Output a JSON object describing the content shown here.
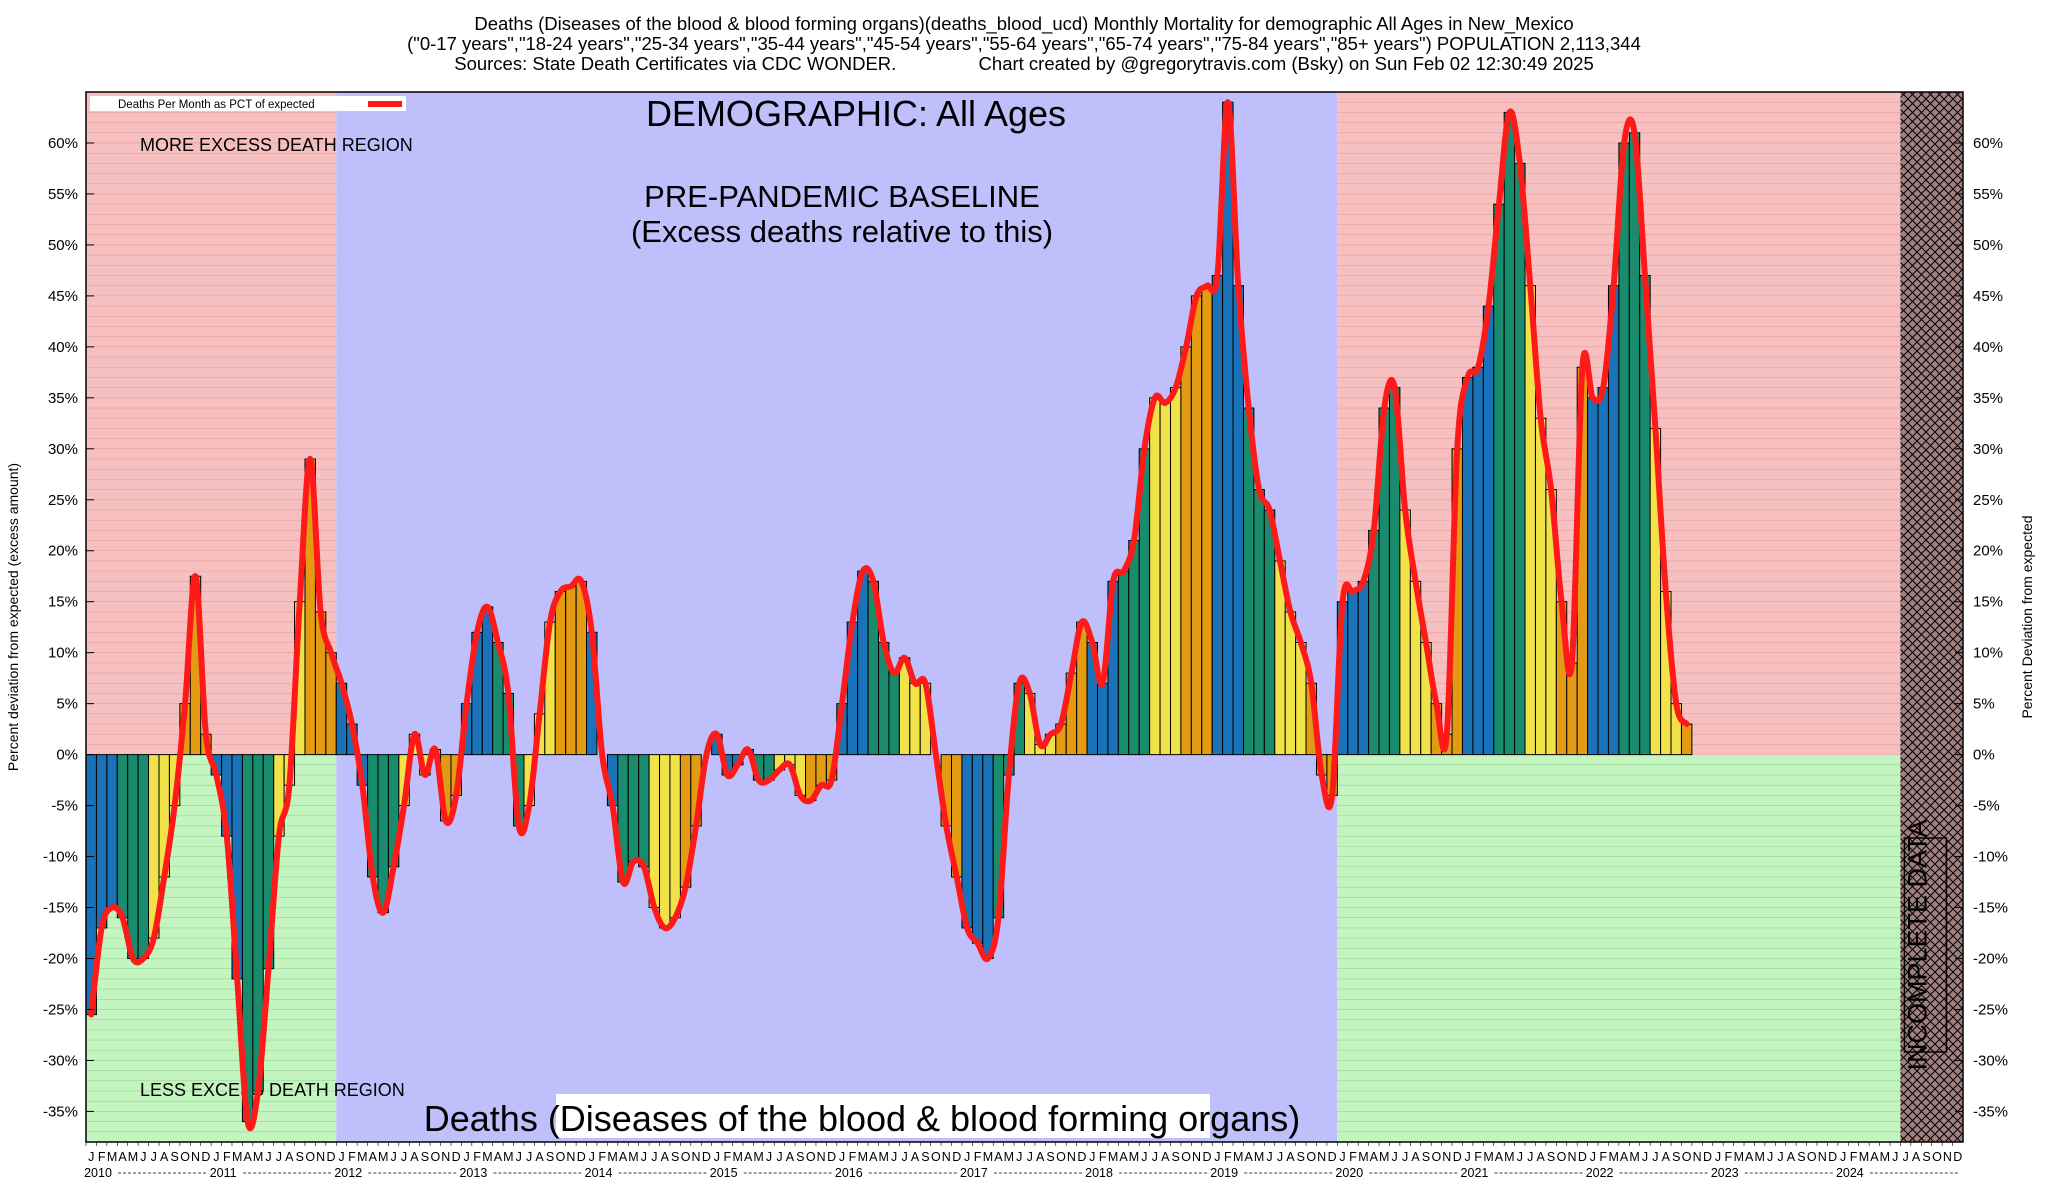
{
  "header": {
    "line1": "Deaths (Diseases of the blood & blood forming organs)(deaths_blood_ucd) Monthly Mortality for demographic All Ages in New_Mexico",
    "line2": "(\"0-17 years\",\"18-24 years\",\"25-34 years\",\"35-44 years\",\"45-54 years\",\"55-64 years\",\"65-74 years\",\"75-84 years\",\"85+ years\") POPULATION 2,113,344",
    "line3": "Sources: State Death Certificates via CDC WONDER.                Chart created by @gregorytravis.com (Bsky) on Sun Feb 02 12:30:49 2025"
  },
  "colors": {
    "excess_region": "#f7c0c0",
    "less_region": "#c4f5c0",
    "baseline_region": "#bfbffc",
    "incomplete_region": "#a08080",
    "line": "#ff1a1a",
    "bar_palette": [
      "#1a72b8",
      "#1a8c6e",
      "#f2e24a",
      "#e29b12"
    ]
  },
  "chart_data": {
    "type": "bar",
    "title": "DEMOGRAPHIC: All Ages",
    "subtitle": "Deaths (Diseases of the blood & blood forming organs)",
    "ylabel_left": "Percent deviation from expected (excess amount)",
    "ylabel_right": "Percent Deviation from expected",
    "legend": "Deaths Per Month as PCT of expected",
    "legend_position": "top-left",
    "ylim": [
      -38,
      65
    ],
    "yticks": [
      -35,
      -30,
      -25,
      -20,
      -15,
      -10,
      -5,
      0,
      5,
      10,
      15,
      20,
      25,
      30,
      35,
      40,
      45,
      50,
      55,
      60
    ],
    "grid": true,
    "annotations": {
      "excess": "MORE EXCESS DEATH REGION",
      "less": "LESS EXCESS DEATH REGION",
      "baseline_title": "PRE-PANDEMIC BASELINE",
      "baseline_sub": "(Excess deaths relative to this)",
      "incomplete": "INCOMPLETE DATA"
    },
    "month_letters": [
      "J",
      "F",
      "M",
      "A",
      "M",
      "J",
      "J",
      "A",
      "S",
      "O",
      "N",
      "D"
    ],
    "years": [
      "2010",
      "2011",
      "2012",
      "2013",
      "2014",
      "2015",
      "2016",
      "2017",
      "2018",
      "2019",
      "2020",
      "2021",
      "2022",
      "2023",
      "2024"
    ],
    "regions": {
      "excess_less_end_month": 23,
      "baseline_end_month": 119,
      "incomplete_start_month": 174
    },
    "values": [
      -25.5,
      -17,
      -15,
      -16,
      -20,
      -20,
      -18,
      -12,
      -5,
      5,
      17.5,
      2,
      -2,
      -8,
      -22,
      -36,
      -33,
      -21,
      -8,
      -3,
      15,
      29,
      14,
      10,
      7,
      3,
      -3,
      -12,
      -15.5,
      -11,
      -5,
      2,
      -2,
      0.5,
      -6.5,
      -4,
      5,
      12,
      14.5,
      11,
      6,
      -7,
      -5,
      4,
      13,
      16,
      16.5,
      17,
      12,
      0,
      -5,
      -12.5,
      -10.5,
      -11,
      -15,
      -17,
      -16,
      -13,
      -7,
      0,
      2,
      -2,
      -1,
      0.5,
      -2.5,
      -2.5,
      -1.5,
      -1,
      -4,
      -4.5,
      -3,
      -2.5,
      5,
      13,
      18,
      17,
      11,
      8,
      9.5,
      7,
      7,
      0,
      -7,
      -12,
      -17,
      -18.5,
      -20,
      -16,
      -2,
      7,
      6,
      1,
      2,
      3,
      8,
      13,
      11,
      7,
      17,
      18,
      21,
      30,
      35,
      34.5,
      36,
      40,
      45,
      46,
      47,
      64,
      46,
      34,
      26,
      24,
      19,
      14,
      11,
      7,
      -2,
      -4,
      15,
      16,
      17,
      22,
      34,
      36,
      24,
      17,
      11,
      5,
      2,
      30,
      37,
      38,
      44,
      54,
      63,
      58,
      46,
      33,
      26,
      15,
      9,
      38,
      35,
      36,
      46,
      60,
      61,
      47,
      32,
      16,
      5,
      3
    ]
  }
}
